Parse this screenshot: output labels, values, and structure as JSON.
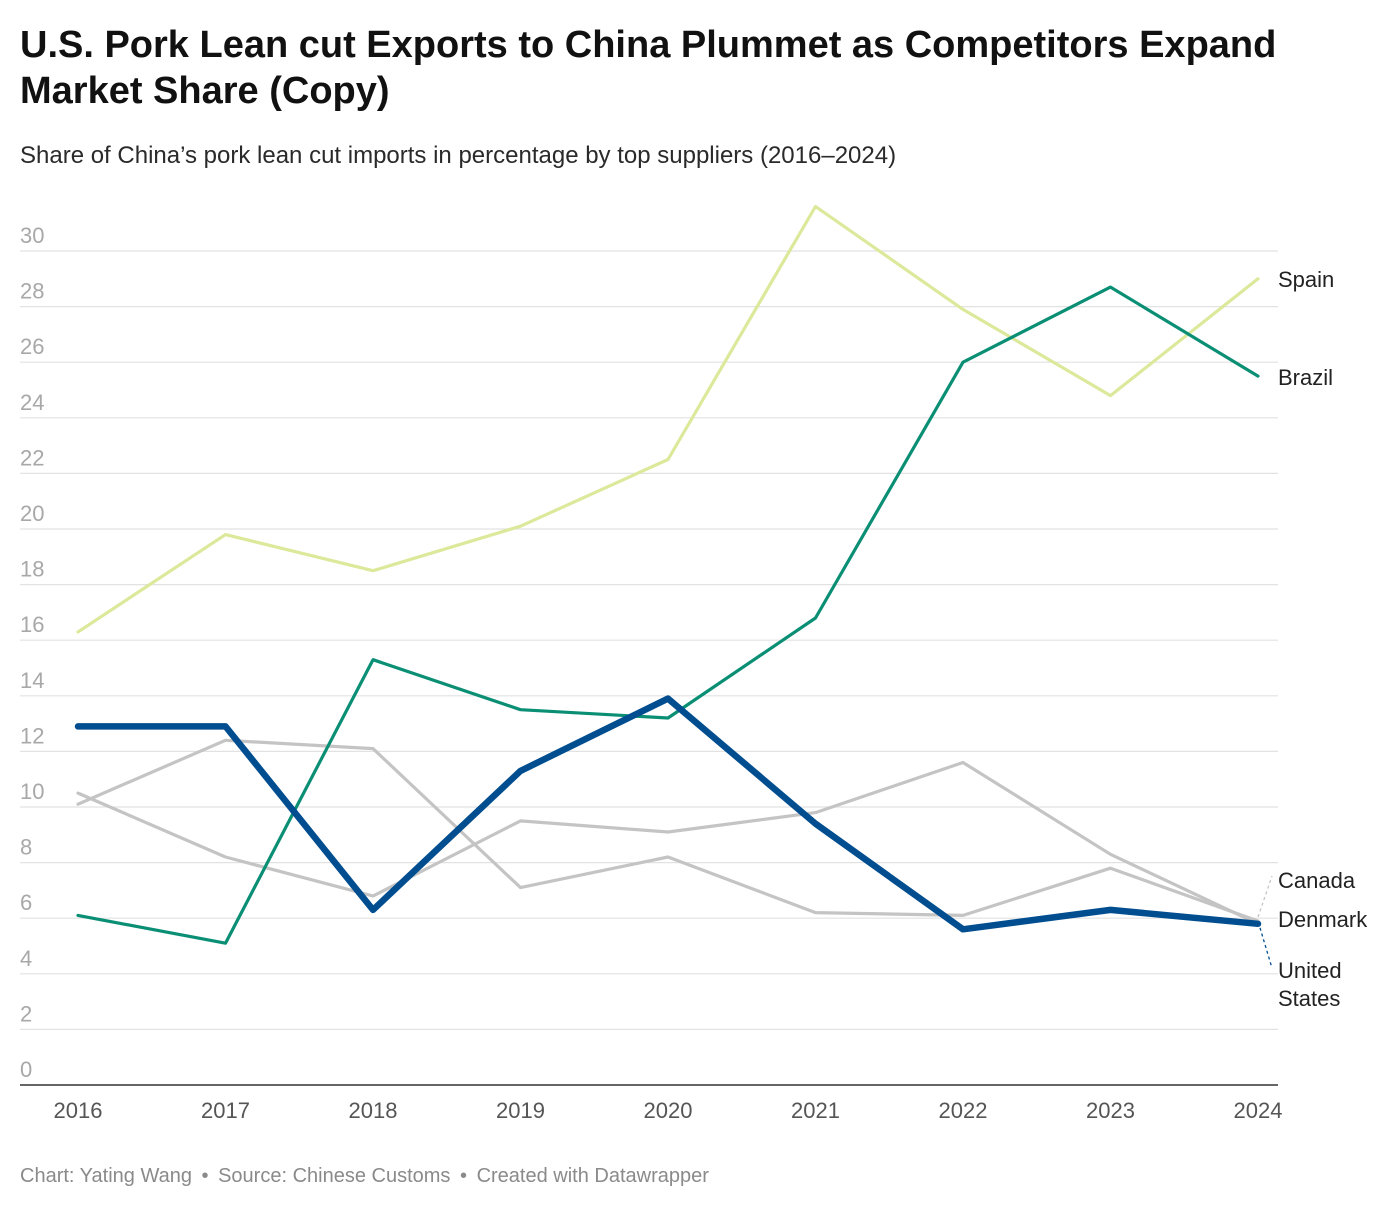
{
  "title": "U.S. Pork Lean cut Exports to China Plummet as Competitors Expand Market Share (Copy)",
  "subtitle": "Share of China’s pork lean cut imports in percentage by top suppliers (2016–2024)",
  "footer": {
    "credit": "Chart: Yating Wang",
    "source": "Source: Chinese Customs",
    "tool": "Created with Datawrapper",
    "separator": "•"
  },
  "chart_data": {
    "type": "line",
    "title": "U.S. Pork Lean cut Exports to China Plummet as Competitors Expand Market Share (Copy)",
    "subtitle": "Share of China’s pork lean cut imports in percentage by top suppliers (2016–2024)",
    "xlabel": "",
    "ylabel": "",
    "x": [
      2016,
      2017,
      2018,
      2019,
      2020,
      2021,
      2022,
      2023,
      2024
    ],
    "ylim": [
      0,
      30
    ],
    "yticks": [
      0,
      2,
      4,
      6,
      8,
      10,
      12,
      14,
      16,
      18,
      20,
      22,
      24,
      26,
      28,
      30
    ],
    "grid": true,
    "legend": "direct labels at right end of lines",
    "series": [
      {
        "name": "Spain",
        "color": "#dce89a",
        "values": [
          16.3,
          19.8,
          18.5,
          20.1,
          22.5,
          31.6,
          27.9,
          24.8,
          29.0
        ]
      },
      {
        "name": "Brazil",
        "color": "#0a8f75",
        "values": [
          6.1,
          5.1,
          15.3,
          13.5,
          13.2,
          16.8,
          26.0,
          28.7,
          25.5
        ]
      },
      {
        "name": "Canada",
        "color": "#c4c4c4",
        "values": [
          10.1,
          12.4,
          12.1,
          7.1,
          8.2,
          6.2,
          6.1,
          7.8,
          5.9
        ]
      },
      {
        "name": "Denmark",
        "color": "#c4c4c4",
        "values": [
          10.5,
          8.2,
          6.8,
          9.5,
          9.1,
          9.8,
          11.6,
          8.3,
          5.8
        ]
      },
      {
        "name": "United States",
        "color": "#004d8f",
        "values": [
          12.9,
          12.9,
          6.3,
          11.3,
          13.9,
          9.4,
          5.6,
          6.3,
          5.8
        ]
      }
    ],
    "labels": [
      {
        "series": "Spain",
        "lines": [
          "Spain"
        ]
      },
      {
        "series": "Brazil",
        "lines": [
          "Brazil"
        ]
      },
      {
        "series": "Canada",
        "lines": [
          "Canada"
        ]
      },
      {
        "series": "Denmark",
        "lines": [
          "Denmark"
        ]
      },
      {
        "series": "United States",
        "lines": [
          "United",
          "States"
        ]
      }
    ]
  }
}
